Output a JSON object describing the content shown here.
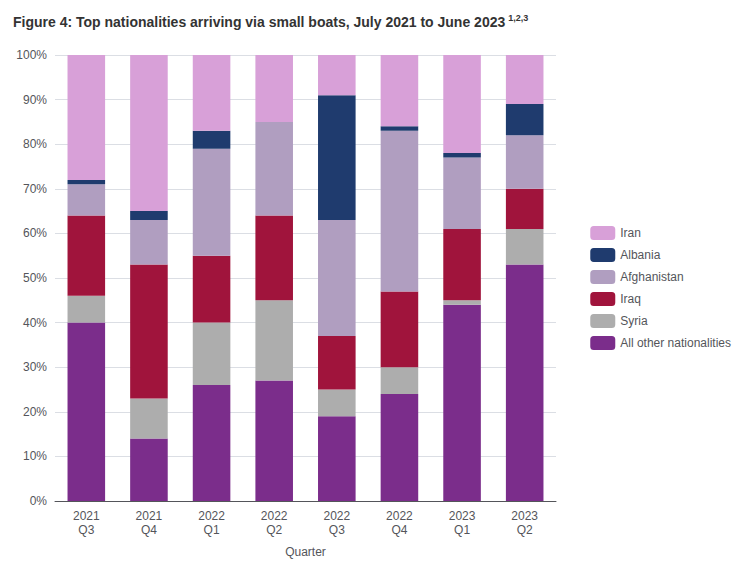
{
  "chart_data": {
    "type": "bar",
    "stacked": true,
    "title": "Figure 4: Top nationalities arriving via small boats, July 2021 to June 2023",
    "annotations": [
      "1,2,3"
    ],
    "xlabel": "Quarter",
    "categories": [
      "2021\nQ3",
      "2021\nQ4",
      "2022\nQ1",
      "2022\nQ2",
      "2022\nQ3",
      "2022\nQ4",
      "2023\nQ1",
      "2023\nQ2"
    ],
    "series": [
      {
        "name": "All other nationalities",
        "color": "#7B2D8B",
        "values": [
          40,
          14,
          26,
          27,
          19,
          24,
          44,
          53
        ]
      },
      {
        "name": "Syria",
        "color": "#ADADAD",
        "values": [
          6,
          9,
          14,
          18,
          6,
          6,
          1,
          8
        ]
      },
      {
        "name": "Iraq",
        "color": "#A0143C",
        "values": [
          18,
          30,
          15,
          19,
          12,
          17,
          16,
          9
        ]
      },
      {
        "name": "Afghanistan",
        "color": "#B09EC0",
        "values": [
          7,
          10,
          24,
          21,
          26,
          36,
          16,
          12
        ]
      },
      {
        "name": "Albania",
        "color": "#1F3B6E",
        "values": [
          1,
          2,
          4,
          0,
          28,
          1,
          1,
          7
        ]
      },
      {
        "name": "Iran",
        "color": "#D8A0D8",
        "values": [
          28,
          35,
          17,
          15,
          9,
          16,
          22,
          11
        ]
      }
    ],
    "ylim": [
      0,
      100
    ],
    "yticks": [
      {
        "value": 0,
        "label": "0%"
      },
      {
        "value": 10,
        "label": "10%"
      },
      {
        "value": 20,
        "label": "20%"
      },
      {
        "value": 30,
        "label": "30%"
      },
      {
        "value": 40,
        "label": "40%"
      },
      {
        "value": 50,
        "label": "50%"
      },
      {
        "value": 60,
        "label": "60%"
      },
      {
        "value": 70,
        "label": "70%"
      },
      {
        "value": 80,
        "label": "80%"
      },
      {
        "value": 90,
        "label": "90%"
      },
      {
        "value": 100,
        "label": "100%"
      }
    ],
    "grid": true,
    "legend": "right"
  }
}
